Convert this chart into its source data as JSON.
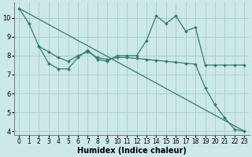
{
  "bg_color": "#cde8e8",
  "grid_color": "#aacfcf",
  "line_color": "#2e7d6e",
  "xlabel": "Humidex (Indice chaleur)",
  "xlim": [
    -0.5,
    23.5
  ],
  "ylim": [
    3.8,
    10.8
  ],
  "yticks": [
    4,
    5,
    6,
    7,
    8,
    9,
    10
  ],
  "xticks": [
    0,
    1,
    2,
    3,
    4,
    5,
    6,
    7,
    8,
    9,
    10,
    11,
    12,
    13,
    14,
    15,
    16,
    17,
    18,
    19,
    20,
    21,
    22,
    23
  ],
  "line1_x": [
    0,
    1,
    2,
    3,
    4,
    5,
    6,
    7,
    8,
    9,
    10,
    11,
    12,
    13,
    14,
    15,
    16,
    17,
    18,
    19,
    20,
    21,
    22,
    23
  ],
  "line1_y": [
    10.5,
    9.7,
    8.5,
    7.6,
    7.3,
    7.3,
    7.9,
    8.3,
    7.8,
    7.7,
    8.0,
    8.0,
    8.0,
    8.8,
    10.1,
    9.7,
    10.1,
    9.3,
    9.5,
    7.5,
    7.5,
    7.5,
    7.5,
    7.5
  ],
  "line2_x": [
    0,
    23
  ],
  "line2_y": [
    10.5,
    4.0
  ],
  "line3_x": [
    2,
    3,
    4,
    5,
    6,
    7,
    8,
    9,
    10,
    11,
    12,
    13,
    14,
    15,
    16,
    17,
    18,
    19,
    20,
    21,
    22,
    23
  ],
  "line3_y": [
    8.5,
    8.2,
    7.9,
    7.7,
    8.0,
    8.2,
    7.9,
    7.8,
    7.9,
    7.9,
    7.85,
    7.8,
    7.75,
    7.7,
    7.65,
    7.6,
    7.55,
    6.3,
    5.4,
    4.7,
    4.1,
    4.0
  ],
  "xlabel_fontsize": 7,
  "tick_fontsize": 5.5,
  "ytick_fontsize": 6
}
